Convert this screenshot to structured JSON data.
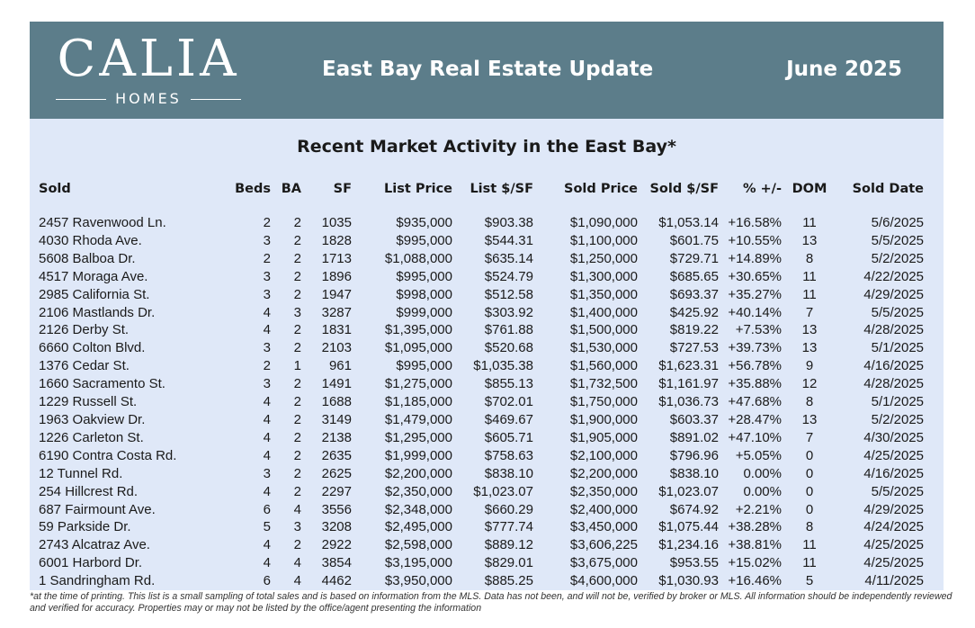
{
  "header": {
    "logo_main": "CALIA",
    "logo_sub": "HOMES",
    "title": "East Bay Real Estate Update",
    "date": "June 2025",
    "bg_color": "#5c7d8a"
  },
  "panel": {
    "title": "Recent Market Activity in the East Bay*",
    "bg_color": "#dfe8f8"
  },
  "table": {
    "columns": [
      "Sold",
      "Beds",
      "BA",
      "SF",
      "List Price",
      "List $/SF",
      "Sold Price",
      "Sold $/SF",
      "% +/-",
      "DOM",
      "Sold Date"
    ],
    "rows": [
      [
        "2457 Ravenwood Ln.",
        "2",
        "2",
        "1035",
        "$935,000",
        "$903.38",
        "$1,090,000",
        "$1,053.14",
        "+16.58%",
        "11",
        "5/6/2025"
      ],
      [
        "4030 Rhoda Ave.",
        "3",
        "2",
        "1828",
        "$995,000",
        "$544.31",
        "$1,100,000",
        "$601.75",
        "+10.55%",
        "13",
        "5/5/2025"
      ],
      [
        "5608 Balboa Dr.",
        "2",
        "2",
        "1713",
        "$1,088,000",
        "$635.14",
        "$1,250,000",
        "$729.71",
        "+14.89%",
        "8",
        "5/2/2025"
      ],
      [
        "4517 Moraga Ave.",
        "3",
        "2",
        "1896",
        "$995,000",
        "$524.79",
        "$1,300,000",
        "$685.65",
        "+30.65%",
        "11",
        "4/22/2025"
      ],
      [
        "2985 California St.",
        "3",
        "2",
        "1947",
        "$998,000",
        "$512.58",
        "$1,350,000",
        "$693.37",
        "+35.27%",
        "11",
        "4/29/2025"
      ],
      [
        "2106 Mastlands Dr.",
        "4",
        "3",
        "3287",
        "$999,000",
        "$303.92",
        "$1,400,000",
        "$425.92",
        "+40.14%",
        "7",
        "5/5/2025"
      ],
      [
        "2126 Derby St.",
        "4",
        "2",
        "1831",
        "$1,395,000",
        "$761.88",
        "$1,500,000",
        "$819.22",
        "+7.53%",
        "13",
        "4/28/2025"
      ],
      [
        "6660 Colton Blvd.",
        "3",
        "2",
        "2103",
        "$1,095,000",
        "$520.68",
        "$1,530,000",
        "$727.53",
        "+39.73%",
        "13",
        "5/1/2025"
      ],
      [
        "1376 Cedar St.",
        "2",
        "1",
        "961",
        "$995,000",
        "$1,035.38",
        "$1,560,000",
        "$1,623.31",
        "+56.78%",
        "9",
        "4/16/2025"
      ],
      [
        "1660 Sacramento St.",
        "3",
        "2",
        "1491",
        "$1,275,000",
        "$855.13",
        "$1,732,500",
        "$1,161.97",
        "+35.88%",
        "12",
        "4/28/2025"
      ],
      [
        "1229 Russell St.",
        "4",
        "2",
        "1688",
        "$1,185,000",
        "$702.01",
        "$1,750,000",
        "$1,036.73",
        "+47.68%",
        "8",
        "5/1/2025"
      ],
      [
        "1963 Oakview Dr.",
        "4",
        "2",
        "3149",
        "$1,479,000",
        "$469.67",
        "$1,900,000",
        "$603.37",
        "+28.47%",
        "13",
        "5/2/2025"
      ],
      [
        "1226 Carleton St.",
        "4",
        "2",
        "2138",
        "$1,295,000",
        "$605.71",
        "$1,905,000",
        "$891.02",
        "+47.10%",
        "7",
        "4/30/2025"
      ],
      [
        "6190 Contra Costa Rd.",
        "4",
        "2",
        "2635",
        "$1,999,000",
        "$758.63",
        "$2,100,000",
        "$796.96",
        "+5.05%",
        "0",
        "4/25/2025"
      ],
      [
        "12 Tunnel Rd.",
        "3",
        "2",
        "2625",
        "$2,200,000",
        "$838.10",
        "$2,200,000",
        "$838.10",
        "0.00%",
        "0",
        "4/16/2025"
      ],
      [
        "254 Hillcrest Rd.",
        "4",
        "2",
        "2297",
        "$2,350,000",
        "$1,023.07",
        "$2,350,000",
        "$1,023.07",
        "0.00%",
        "0",
        "5/5/2025"
      ],
      [
        "687 Fairmount Ave.",
        "6",
        "4",
        "3556",
        "$2,348,000",
        "$660.29",
        "$2,400,000",
        "$674.92",
        "+2.21%",
        "0",
        "4/29/2025"
      ],
      [
        "59 Parkside Dr.",
        "5",
        "3",
        "3208",
        "$2,495,000",
        "$777.74",
        "$3,450,000",
        "$1,075.44",
        "+38.28%",
        "8",
        "4/24/2025"
      ],
      [
        "2743 Alcatraz Ave.",
        "4",
        "2",
        "2922",
        "$2,598,000",
        "$889.12",
        "$3,606,225",
        "$1,234.16",
        "+38.81%",
        "11",
        "4/25/2025"
      ],
      [
        "6001 Harbord Dr.",
        "4",
        "4",
        "3854",
        "$3,195,000",
        "$829.01",
        "$3,675,000",
        "$953.55",
        "+15.02%",
        "11",
        "4/25/2025"
      ],
      [
        "1 Sandringham Rd.",
        "6",
        "4",
        "4462",
        "$3,950,000",
        "$885.25",
        "$4,600,000",
        "$1,030.93",
        "+16.46%",
        "5",
        "4/11/2025"
      ]
    ]
  },
  "footnote": "*at the time of printing. This list is a small sampling of total sales and is based on information from the MLS. Data has not been, and will not be, verified by broker or MLS. All information should be independently reviewed and verified for accuracy. Properties may or may not be listed by the office/agent presenting the information"
}
